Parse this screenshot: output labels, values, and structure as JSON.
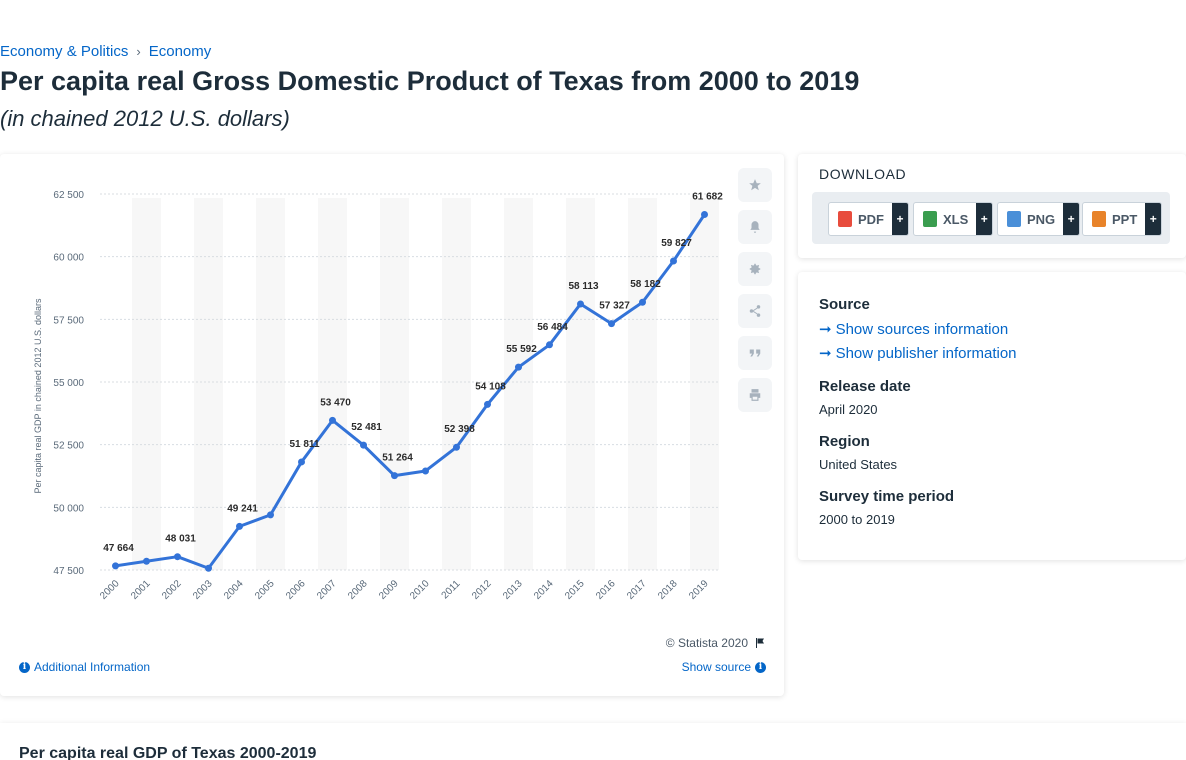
{
  "breadcrumb": {
    "item1": "Economy & Politics",
    "separator": "›",
    "item2": "Economy"
  },
  "page": {
    "title": "Per capita real Gross Domestic Product of Texas from 2000 to 2019",
    "subtitle": "(in chained 2012 U.S. dollars)"
  },
  "chart_data": {
    "type": "line",
    "title": "",
    "xlabel": "",
    "ylabel": "Per capita real GDP in chained 2012 U.S. dollars",
    "x": [
      "2000",
      "2001",
      "2002",
      "2003",
      "2004",
      "2005",
      "2006",
      "2007",
      "2008",
      "2009",
      "2010",
      "2011",
      "2012",
      "2013",
      "2014",
      "2015",
      "2016",
      "2017",
      "2018",
      "2019"
    ],
    "values": [
      47664,
      47850,
      48031,
      47570,
      49241,
      49700,
      51811,
      53470,
      52481,
      51264,
      51450,
      52398,
      54108,
      55592,
      56484,
      58113,
      57327,
      58182,
      59827,
      61682
    ],
    "data_labels": [
      "47 664",
      "",
      "48 031",
      "",
      "49 241",
      "",
      "51 811",
      "53 470",
      "52 481",
      "51 264",
      "",
      "52 398",
      "54 108",
      "55 592",
      "56 484",
      "58 113",
      "57 327",
      "58 182",
      "59 827",
      "61 682"
    ],
    "yticks": [
      47500,
      50000,
      52500,
      55000,
      57500,
      60000,
      62500
    ],
    "ytick_labels": [
      "47 500",
      "50 000",
      "52 500",
      "55 000",
      "57 500",
      "60 000",
      "62 500"
    ],
    "ylim": [
      47500,
      62500
    ],
    "grid": true,
    "line_color": "#3373d8"
  },
  "chart_footer": {
    "copyright": "© Statista 2020",
    "additional_info": "Additional Information",
    "show_source": "Show source"
  },
  "download": {
    "title": "DOWNLOAD",
    "buttons": [
      {
        "label": "PDF",
        "plus": "+",
        "color": "#e84c3d"
      },
      {
        "label": "XLS",
        "plus": "+",
        "color": "#3a9d4f"
      },
      {
        "label": "PNG",
        "plus": "+",
        "color": "#4a8fd8"
      },
      {
        "label": "PPT",
        "plus": "+",
        "color": "#e8832a"
      }
    ]
  },
  "meta": {
    "source_head": "Source",
    "show_sources": "Show sources information",
    "show_publisher": "Show publisher information",
    "release_head": "Release date",
    "release_val": "April 2020",
    "region_head": "Region",
    "region_val": "United States",
    "survey_head": "Survey time period",
    "survey_val": "2000 to 2019"
  },
  "bottom": {
    "title": "Per capita real GDP of Texas 2000-2019"
  }
}
